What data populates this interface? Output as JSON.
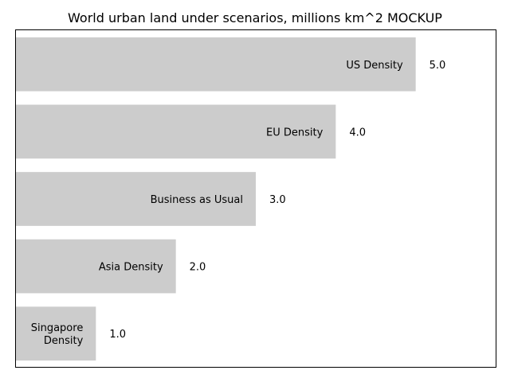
{
  "chart_data": {
    "type": "bar",
    "orientation": "horizontal",
    "title": "World urban land under scenarios, millions km^2 MOCKUP",
    "xlabel": "",
    "ylabel": "",
    "categories": [
      "US Density",
      "EU Density",
      "Business as Usual",
      "Asia Density",
      "Singapore Density"
    ],
    "category_lines": [
      [
        "US Density"
      ],
      [
        "EU Density"
      ],
      [
        "Business as Usual"
      ],
      [
        "Asia Density"
      ],
      [
        "Singapore",
        "Density"
      ]
    ],
    "values": [
      5.0,
      4.0,
      3.0,
      2.0,
      1.0
    ],
    "value_labels": [
      "5.0",
      "4.0",
      "3.0",
      "2.0",
      "1.0"
    ],
    "xlim": [
      0,
      6
    ],
    "grid": false,
    "axis_ticks_visible": false,
    "bar_color": "#cccccc",
    "label_position": "inside-bar-end",
    "value_label_position": "outside-bar-end"
  }
}
